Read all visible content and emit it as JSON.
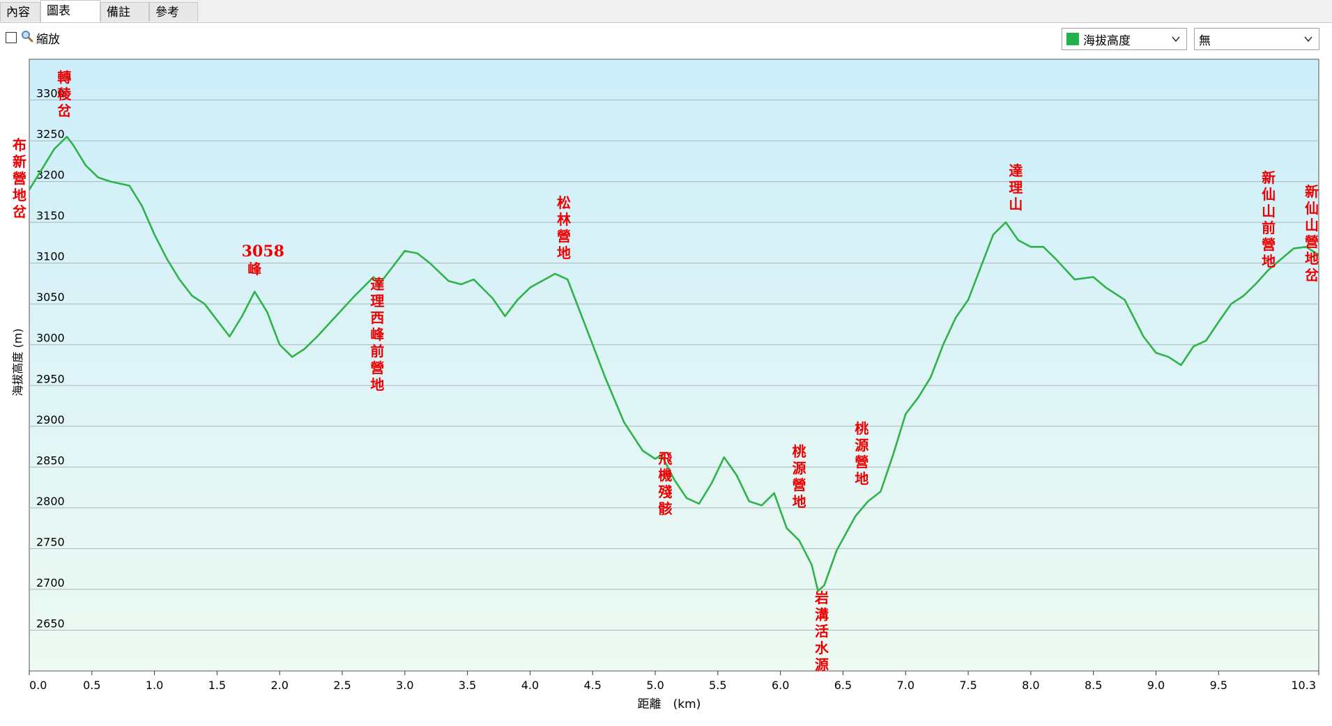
{
  "tabs": [
    {
      "label": "內容",
      "active": false
    },
    {
      "label": "圖表",
      "active": true
    },
    {
      "label": "備註",
      "active": false
    },
    {
      "label": "參考",
      "active": false
    }
  ],
  "toolbar": {
    "zoom_label": "縮放",
    "zoom_checked": false,
    "series_select": {
      "value": "海拔高度",
      "swatch_color": "#22b14c"
    },
    "second_select": {
      "value": "無"
    }
  },
  "colors": {
    "line": "#2eb24a",
    "annotation": "#ee0000",
    "sky_top": "#cdeefa",
    "sky_bottom": "#eefaf2"
  },
  "chart_data": {
    "type": "area",
    "xlabel": "距離　(km)",
    "ylabel": "海拔高度 (m)",
    "xlim": [
      0,
      10.3
    ],
    "ylim": [
      2600,
      3350
    ],
    "xticks": [
      "0.0",
      "0.5",
      "1.0",
      "1.5",
      "2.0",
      "2.5",
      "3.0",
      "3.5",
      "4.0",
      "4.5",
      "5.0",
      "5.5",
      "6.0",
      "6.5",
      "7.0",
      "7.5",
      "8.0",
      "8.5",
      "9.0",
      "9.5",
      "10.3"
    ],
    "yticks": [
      "2650",
      "2700",
      "2750",
      "2800",
      "2850",
      "2900",
      "2950",
      "3000",
      "3050",
      "3100",
      "3150",
      "3200",
      "3250",
      "3300"
    ],
    "grid": true,
    "series": [
      {
        "x": [
          0,
          0.1,
          0.2,
          0.3,
          0.35,
          0.45,
          0.55,
          0.65,
          0.8,
          0.9,
          1.0,
          1.1,
          1.2,
          1.3,
          1.4,
          1.5,
          1.6,
          1.7,
          1.8,
          1.9,
          2.0,
          2.1,
          2.2,
          2.3,
          2.45,
          2.6,
          2.75,
          2.8,
          2.9,
          3.0,
          3.1,
          3.2,
          3.35,
          3.45,
          3.55,
          3.7,
          3.8,
          3.9,
          4.0,
          4.2,
          4.3,
          4.4,
          4.5,
          4.6,
          4.75,
          4.9,
          5.0,
          5.05,
          5.15,
          5.25,
          5.35,
          5.45,
          5.55,
          5.65,
          5.75,
          5.85,
          5.95,
          6.05,
          6.15,
          6.25,
          6.3,
          6.35,
          6.45,
          6.6,
          6.7,
          6.8,
          6.9,
          7.0,
          7.1,
          7.2,
          7.3,
          7.4,
          7.5,
          7.6,
          7.7,
          7.8,
          7.9,
          8.0,
          8.1,
          8.2,
          8.35,
          8.5,
          8.6,
          8.75,
          8.9,
          9.0,
          9.1,
          9.2,
          9.3,
          9.4,
          9.5,
          9.6,
          9.7,
          9.8,
          9.9,
          10.0,
          10.1,
          10.2,
          10.3
        ],
        "y": [
          3190,
          3215,
          3240,
          3255,
          3245,
          3220,
          3205,
          3200,
          3195,
          3170,
          3135,
          3105,
          3080,
          3060,
          3050,
          3030,
          3010,
          3035,
          3065,
          3040,
          3000,
          2985,
          2995,
          3010,
          3035,
          3060,
          3083,
          3075,
          3095,
          3115,
          3112,
          3100,
          3078,
          3074,
          3080,
          3057,
          3035,
          3055,
          3070,
          3087,
          3080,
          3040,
          3000,
          2960,
          2905,
          2870,
          2860,
          2865,
          2835,
          2812,
          2805,
          2830,
          2862,
          2840,
          2808,
          2803,
          2818,
          2775,
          2760,
          2730,
          2698,
          2705,
          2748,
          2790,
          2808,
          2820,
          2865,
          2915,
          2935,
          2960,
          3000,
          3033,
          3055,
          3095,
          3135,
          3150,
          3128,
          3120,
          3120,
          3105,
          3080,
          3083,
          3070,
          3055,
          3010,
          2990,
          2985,
          2975,
          2998,
          3005,
          3028,
          3050,
          3060,
          3075,
          3092,
          3105,
          3118,
          3120,
          3110
        ]
      }
    ],
    "annotations": [
      {
        "text": "布新營地岔",
        "x": 0.0,
        "y": 3200
      },
      {
        "text": "轉稜岔",
        "x": 0.28,
        "y": 3255
      },
      {
        "text": "3058峰",
        "x": 1.8,
        "y": 3065
      },
      {
        "text": "達理西峰前營地",
        "x": 2.78,
        "y": 3083
      },
      {
        "text": "松林營地",
        "x": 4.27,
        "y": 3087
      },
      {
        "text": "飛機殘骸",
        "x": 5.08,
        "y": 2860
      },
      {
        "text": "桃源營地",
        "x": 6.15,
        "y": 2808
      },
      {
        "text": "岩溝活水源",
        "x": 6.33,
        "y": 2698
      },
      {
        "text": "桃源營地",
        "x": 6.65,
        "y": 2815
      },
      {
        "text": "達理山",
        "x": 7.88,
        "y": 3150
      },
      {
        "text": "新仙山前營地",
        "x": 9.9,
        "y": 3062
      },
      {
        "text": "新仙山營地岔",
        "x": 10.3,
        "y": 3110
      }
    ]
  }
}
